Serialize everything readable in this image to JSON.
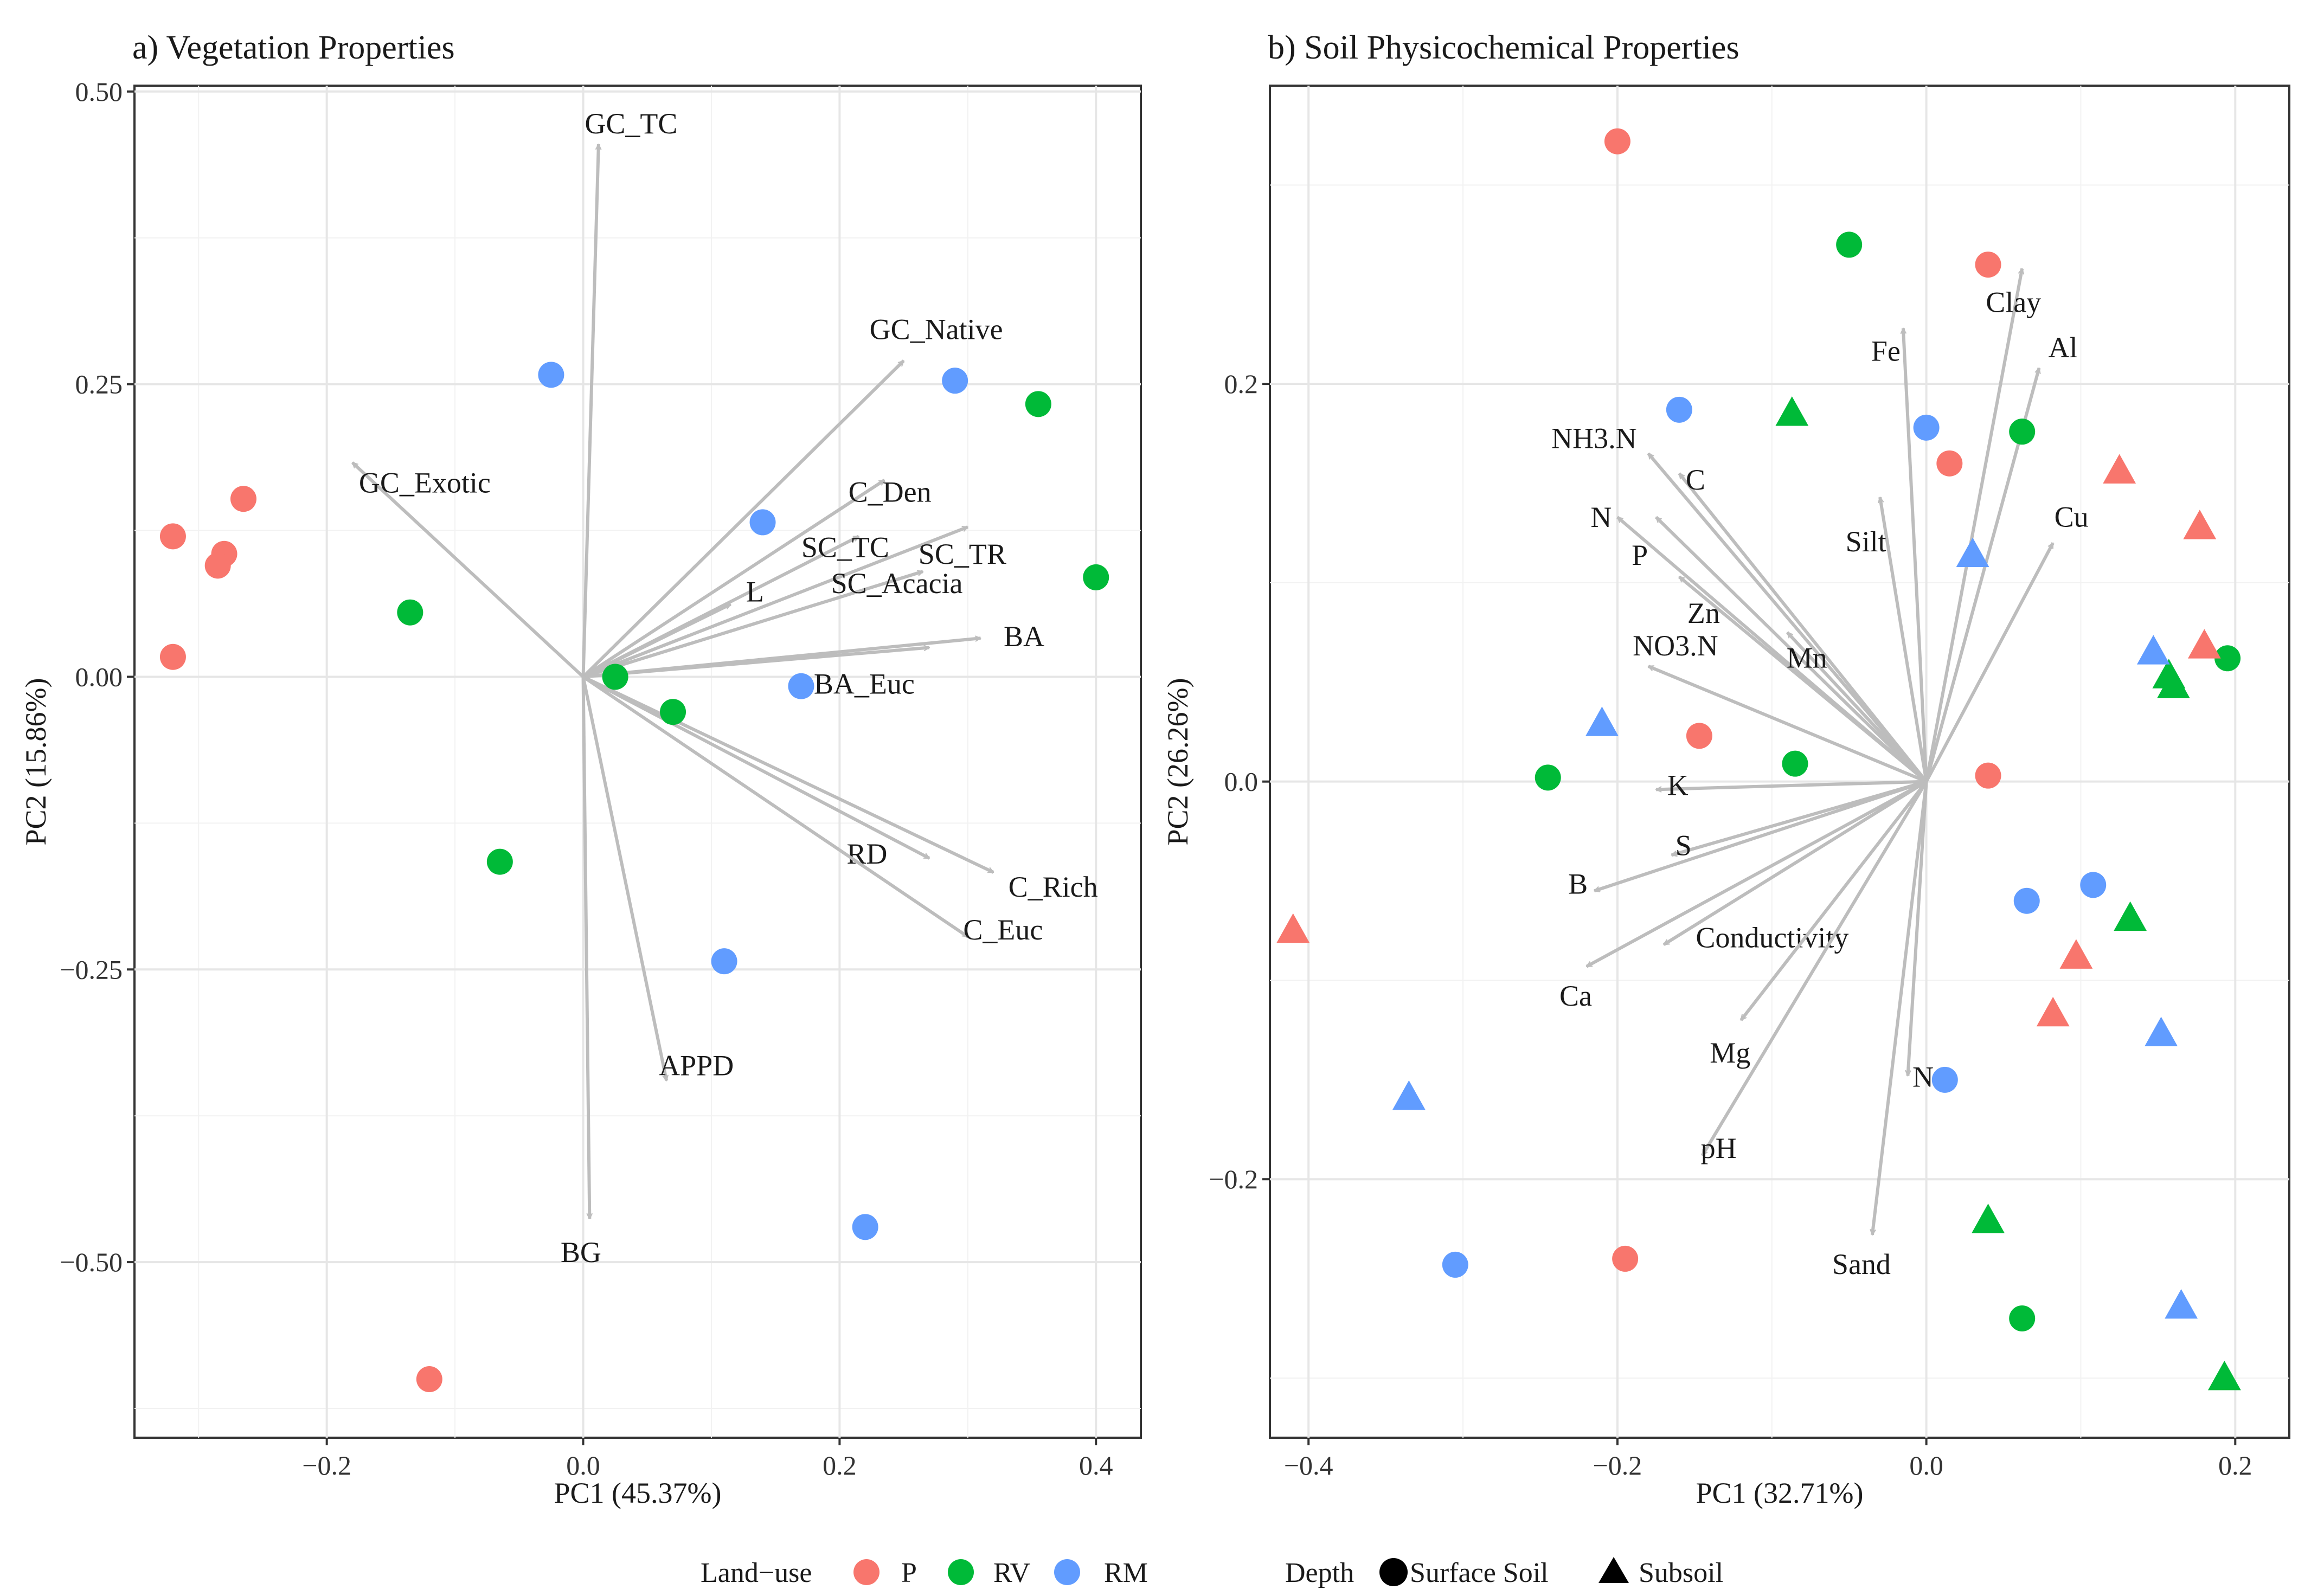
{
  "chart_data": [
    {
      "type": "scatter",
      "title": "a) Vegetation Properties",
      "xlabel": "PC1 (45.37%)",
      "ylabel": "PC2 (15.86%)",
      "xlim": [
        -0.35,
        0.435
      ],
      "ylim": [
        -0.65,
        0.505
      ],
      "xticks": [
        -0.2,
        0.0,
        0.2,
        0.4
      ],
      "xtick_labels": [
        "−0.2",
        "0.0",
        "0.2",
        "0.4"
      ],
      "yticks": [
        -0.5,
        -0.25,
        0.0,
        0.25,
        0.5
      ],
      "ytick_labels": [
        "−0.50",
        "−0.25",
        "0.00",
        "0.25",
        "0.50"
      ],
      "points": [
        {
          "x": -0.32,
          "y": 0.12,
          "group": "P",
          "depth": "Surface Soil"
        },
        {
          "x": -0.28,
          "y": 0.105,
          "group": "P",
          "depth": "Surface Soil"
        },
        {
          "x": -0.285,
          "y": 0.095,
          "group": "P",
          "depth": "Surface Soil"
        },
        {
          "x": -0.265,
          "y": 0.152,
          "group": "P",
          "depth": "Surface Soil"
        },
        {
          "x": -0.32,
          "y": 0.017,
          "group": "P",
          "depth": "Surface Soil"
        },
        {
          "x": -0.12,
          "y": -0.6,
          "group": "P",
          "depth": "Surface Soil"
        },
        {
          "x": -0.135,
          "y": 0.055,
          "group": "RV",
          "depth": "Surface Soil"
        },
        {
          "x": -0.065,
          "y": -0.158,
          "group": "RV",
          "depth": "Surface Soil"
        },
        {
          "x": 0.025,
          "y": 0.0,
          "group": "RV",
          "depth": "Surface Soil"
        },
        {
          "x": 0.07,
          "y": -0.03,
          "group": "RV",
          "depth": "Surface Soil"
        },
        {
          "x": 0.355,
          "y": 0.233,
          "group": "RV",
          "depth": "Surface Soil"
        },
        {
          "x": 0.4,
          "y": 0.085,
          "group": "RV",
          "depth": "Surface Soil"
        },
        {
          "x": -0.025,
          "y": 0.258,
          "group": "RM",
          "depth": "Surface Soil"
        },
        {
          "x": 0.14,
          "y": 0.132,
          "group": "RM",
          "depth": "Surface Soil"
        },
        {
          "x": 0.17,
          "y": -0.008,
          "group": "RM",
          "depth": "Surface Soil"
        },
        {
          "x": 0.29,
          "y": 0.253,
          "group": "RM",
          "depth": "Surface Soil"
        },
        {
          "x": 0.11,
          "y": -0.243,
          "group": "RM",
          "depth": "Surface Soil"
        },
        {
          "x": 0.22,
          "y": -0.47,
          "group": "RM",
          "depth": "Surface Soil"
        }
      ],
      "vectors": [
        {
          "name": "GC_TC",
          "x": 0.012,
          "y": 0.455
        },
        {
          "name": "GC_Native",
          "x": 0.25,
          "y": 0.27
        },
        {
          "name": "GC_Exotic",
          "x": -0.18,
          "y": 0.183
        },
        {
          "name": "C_Den",
          "x": 0.235,
          "y": 0.168
        },
        {
          "name": "SC_TC",
          "x": 0.215,
          "y": 0.12
        },
        {
          "name": "SC_TR",
          "x": 0.3,
          "y": 0.128
        },
        {
          "name": "L",
          "x": 0.115,
          "y": 0.062
        },
        {
          "name": "SC_Acacia",
          "x": 0.265,
          "y": 0.09
        },
        {
          "name": "BA",
          "x": 0.31,
          "y": 0.033
        },
        {
          "name": "BA_Euc",
          "x": 0.27,
          "y": 0.025
        },
        {
          "name": "RD",
          "x": 0.27,
          "y": -0.155
        },
        {
          "name": "C_Rich",
          "x": 0.32,
          "y": -0.167
        },
        {
          "name": "C_Euc",
          "x": 0.3,
          "y": -0.222
        },
        {
          "name": "APPD",
          "x": 0.065,
          "y": -0.345
        },
        {
          "name": "BG",
          "x": 0.005,
          "y": -0.463
        }
      ]
    },
    {
      "type": "scatter",
      "title": "b) Soil Physicochemical Properties",
      "xlabel": "PC1 (32.71%)",
      "ylabel": "PC2 (26.26%)",
      "xlim": [
        -0.425,
        0.235
      ],
      "ylim": [
        -0.33,
        0.35
      ],
      "xticks": [
        -0.4,
        -0.2,
        0.0,
        0.2
      ],
      "xtick_labels": [
        "−0.4",
        "−0.2",
        "0.0",
        "0.2"
      ],
      "yticks": [
        -0.2,
        0.0,
        0.2
      ],
      "ytick_labels": [
        "−0.2",
        "0.0",
        "0.2"
      ],
      "points": [
        {
          "x": -0.2,
          "y": 0.322,
          "group": "P",
          "depth": "Surface Soil"
        },
        {
          "x": 0.04,
          "y": 0.26,
          "group": "P",
          "depth": "Surface Soil"
        },
        {
          "x": 0.015,
          "y": 0.16,
          "group": "P",
          "depth": "Surface Soil"
        },
        {
          "x": -0.147,
          "y": 0.023,
          "group": "P",
          "depth": "Surface Soil"
        },
        {
          "x": 0.04,
          "y": 0.003,
          "group": "P",
          "depth": "Surface Soil"
        },
        {
          "x": -0.195,
          "y": -0.24,
          "group": "P",
          "depth": "Surface Soil"
        },
        {
          "x": -0.05,
          "y": 0.27,
          "group": "RV",
          "depth": "Surface Soil"
        },
        {
          "x": 0.062,
          "y": 0.176,
          "group": "RV",
          "depth": "Surface Soil"
        },
        {
          "x": -0.245,
          "y": 0.002,
          "group": "RV",
          "depth": "Surface Soil"
        },
        {
          "x": -0.085,
          "y": 0.009,
          "group": "RV",
          "depth": "Surface Soil"
        },
        {
          "x": 0.195,
          "y": 0.062,
          "group": "RV",
          "depth": "Surface Soil"
        },
        {
          "x": 0.062,
          "y": -0.27,
          "group": "RV",
          "depth": "Surface Soil"
        },
        {
          "x": -0.16,
          "y": 0.187,
          "group": "RM",
          "depth": "Surface Soil"
        },
        {
          "x": 0.0,
          "y": 0.178,
          "group": "RM",
          "depth": "Surface Soil"
        },
        {
          "x": 0.065,
          "y": -0.06,
          "group": "RM",
          "depth": "Surface Soil"
        },
        {
          "x": 0.108,
          "y": -0.052,
          "group": "RM",
          "depth": "Surface Soil"
        },
        {
          "x": 0.012,
          "y": -0.15,
          "group": "RM",
          "depth": "Surface Soil"
        },
        {
          "x": -0.305,
          "y": -0.243,
          "group": "RM",
          "depth": "Surface Soil"
        },
        {
          "x": 0.125,
          "y": 0.156,
          "group": "P",
          "depth": "Subsoil"
        },
        {
          "x": 0.177,
          "y": 0.128,
          "group": "P",
          "depth": "Subsoil"
        },
        {
          "x": 0.18,
          "y": 0.068,
          "group": "P",
          "depth": "Subsoil"
        },
        {
          "x": 0.097,
          "y": -0.088,
          "group": "P",
          "depth": "Subsoil"
        },
        {
          "x": 0.082,
          "y": -0.117,
          "group": "P",
          "depth": "Subsoil"
        },
        {
          "x": -0.41,
          "y": -0.075,
          "group": "P",
          "depth": "Subsoil"
        },
        {
          "x": -0.087,
          "y": 0.185,
          "group": "RV",
          "depth": "Subsoil"
        },
        {
          "x": 0.157,
          "y": 0.053,
          "group": "RV",
          "depth": "Subsoil"
        },
        {
          "x": 0.16,
          "y": 0.048,
          "group": "RV",
          "depth": "Subsoil"
        },
        {
          "x": 0.132,
          "y": -0.069,
          "group": "RV",
          "depth": "Subsoil"
        },
        {
          "x": 0.04,
          "y": -0.221,
          "group": "RV",
          "depth": "Subsoil"
        },
        {
          "x": 0.193,
          "y": -0.3,
          "group": "RV",
          "depth": "Subsoil"
        },
        {
          "x": 0.03,
          "y": 0.114,
          "group": "RM",
          "depth": "Subsoil"
        },
        {
          "x": -0.21,
          "y": 0.029,
          "group": "RM",
          "depth": "Subsoil"
        },
        {
          "x": 0.147,
          "y": 0.065,
          "group": "RM",
          "depth": "Subsoil"
        },
        {
          "x": 0.152,
          "y": -0.127,
          "group": "RM",
          "depth": "Subsoil"
        },
        {
          "x": 0.165,
          "y": -0.264,
          "group": "RM",
          "depth": "Subsoil"
        },
        {
          "x": -0.335,
          "y": -0.159,
          "group": "RM",
          "depth": "Subsoil"
        }
      ],
      "vectors": [
        {
          "name": "Clay",
          "x": 0.062,
          "y": 0.258
        },
        {
          "name": "Al",
          "x": 0.073,
          "y": 0.208
        },
        {
          "name": "Fe",
          "x": -0.015,
          "y": 0.228
        },
        {
          "name": "Silt",
          "x": -0.03,
          "y": 0.143
        },
        {
          "name": "Cu",
          "x": 0.082,
          "y": 0.12
        },
        {
          "name": "NH3.N",
          "x": -0.18,
          "y": 0.165
        },
        {
          "name": "C",
          "x": -0.16,
          "y": 0.155
        },
        {
          "name": "N",
          "x": -0.2,
          "y": 0.133
        },
        {
          "name": "P",
          "x": -0.175,
          "y": 0.133
        },
        {
          "name": "Zn",
          "x": -0.16,
          "y": 0.103
        },
        {
          "name": "Mn",
          "x": -0.09,
          "y": 0.075
        },
        {
          "name": "NO3.N",
          "x": -0.18,
          "y": 0.058
        },
        {
          "name": "K",
          "x": -0.175,
          "y": -0.004
        },
        {
          "name": "S",
          "x": -0.165,
          "y": -0.037
        },
        {
          "name": "B",
          "x": -0.215,
          "y": -0.055
        },
        {
          "name": "Conductivity",
          "x": -0.17,
          "y": -0.082
        },
        {
          "name": "Ca",
          "x": -0.22,
          "y": -0.093
        },
        {
          "name": "Mg",
          "x": -0.12,
          "y": -0.12
        },
        {
          "name": "Na",
          "x": -0.012,
          "y": -0.148
        },
        {
          "name": "pH",
          "x": -0.145,
          "y": -0.188
        },
        {
          "name": "Sand",
          "x": -0.035,
          "y": -0.228
        }
      ]
    }
  ],
  "legend": {
    "land_use_title": "Land−use",
    "land_use_items": [
      {
        "label": "P",
        "color": "#F8766D"
      },
      {
        "label": "RV",
        "color": "#00BA38"
      },
      {
        "label": "RM",
        "color": "#619CFF"
      }
    ],
    "depth_title": "Depth",
    "depth_items": [
      {
        "label": "Surface Soil",
        "shape": "circle"
      },
      {
        "label": "Subsoil",
        "shape": "triangle"
      }
    ]
  },
  "colors": {
    "P": "#F8766D",
    "RV": "#00BA38",
    "RM": "#619CFF",
    "vector": "#bdbdbd"
  }
}
